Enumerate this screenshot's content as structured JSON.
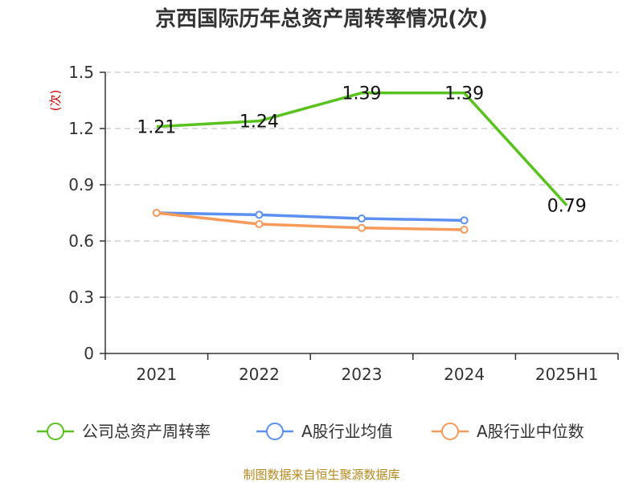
{
  "chart_data": {
    "type": "line",
    "title": "京西国际历年总资产周转率情况(次)",
    "ylabel": "(次)",
    "categories": [
      "2021",
      "2022",
      "2023",
      "2024",
      "2025H1"
    ],
    "ylim": [
      0,
      1.5
    ],
    "yticks": [
      "0",
      "0.3",
      "0.6",
      "0.9",
      "1.2",
      "1.5"
    ],
    "ytick_values": [
      0,
      0.3,
      0.6,
      0.9,
      1.2,
      1.5
    ],
    "grid": true,
    "legend_position": "bottom",
    "series": [
      {
        "name": "公司总资产周转率",
        "color": "#5ac21e",
        "values": [
          1.21,
          1.24,
          1.39,
          1.39,
          0.79
        ],
        "labels": [
          "1.21",
          "1.24",
          "1.39",
          "1.39",
          "0.79"
        ],
        "markers": false
      },
      {
        "name": "A股行业均值",
        "color": "#5b8ff0",
        "values": [
          0.75,
          0.74,
          0.72,
          0.71,
          null
        ],
        "markers": true
      },
      {
        "name": "A股行业中位数",
        "color": "#f89a5a",
        "values": [
          0.75,
          0.69,
          0.67,
          0.66,
          null
        ],
        "markers": true
      }
    ],
    "source": "制图数据来自恒生聚源数据库"
  }
}
